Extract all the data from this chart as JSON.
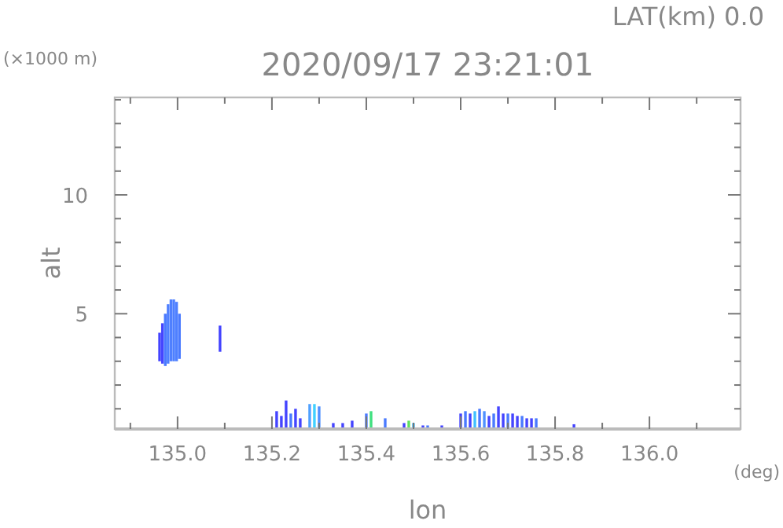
{
  "chart_data": {
    "type": "bar",
    "title": "2020/09/17 23:21:01",
    "subtitle": "LAT(km) 0.0",
    "xlabel": "lon",
    "ylabel": "alt",
    "annotations": [
      "(×1000 m)",
      "(deg)"
    ],
    "x": [
      134.962,
      134.968,
      134.974,
      134.98,
      134.986,
      134.992,
      134.998,
      135.004,
      135.09,
      135.21,
      135.22,
      135.23,
      135.24,
      135.25,
      135.26,
      135.28,
      135.29,
      135.3,
      135.33,
      135.35,
      135.37,
      135.4,
      135.41,
      135.44,
      135.48,
      135.49,
      135.5,
      135.52,
      135.53,
      135.56,
      135.6,
      135.61,
      135.62,
      135.63,
      135.64,
      135.65,
      135.66,
      135.67,
      135.68,
      135.69,
      135.7,
      135.71,
      135.72,
      135.73,
      135.74,
      135.75,
      135.76,
      135.84
    ],
    "base": [
      3.0,
      2.9,
      2.8,
      2.9,
      3.0,
      3.0,
      3.0,
      3.1,
      3.4,
      0.2,
      0.2,
      0.2,
      0.2,
      0.2,
      0.2,
      0.2,
      0.2,
      0.2,
      0.2,
      0.2,
      0.2,
      0.2,
      0.2,
      0.2,
      0.2,
      0.2,
      0.2,
      0.2,
      0.2,
      0.2,
      0.2,
      0.2,
      0.2,
      0.2,
      0.2,
      0.2,
      0.2,
      0.2,
      0.2,
      0.2,
      0.2,
      0.2,
      0.2,
      0.2,
      0.2,
      0.2,
      0.2,
      0.2
    ],
    "values": [
      1.2,
      1.7,
      2.2,
      2.5,
      2.6,
      2.6,
      2.5,
      1.9,
      1.1,
      0.7,
      0.5,
      1.15,
      0.6,
      0.8,
      0.4,
      1.0,
      1.0,
      0.9,
      0.2,
      0.2,
      0.3,
      0.6,
      0.7,
      0.4,
      0.2,
      0.3,
      0.2,
      0.1,
      0.1,
      0.1,
      0.6,
      0.7,
      0.6,
      0.7,
      0.8,
      0.7,
      0.5,
      0.6,
      0.9,
      0.6,
      0.6,
      0.6,
      0.5,
      0.5,
      0.4,
      0.4,
      0.4,
      0.15
    ],
    "colors": [
      "#4444ff",
      "#4444ff",
      "#4a7aff",
      "#4f80ff",
      "#4f80ff",
      "#4f80ff",
      "#4f80ff",
      "#4a7aff",
      "#4444ff",
      "#4444ff",
      "#4444ff",
      "#4444ff",
      "#4a7aff",
      "#4444ff",
      "#4444ff",
      "#4fa0ff",
      "#40d0ff",
      "#4f90ff",
      "#4444ff",
      "#4444ff",
      "#4444ff",
      "#4a7aff",
      "#40e080",
      "#4a7aff",
      "#4444ff",
      "#60e060",
      "#40c0ff",
      "#4444ff",
      "#4a7aff",
      "#4444ff",
      "#4444ff",
      "#4a7aff",
      "#4444ff",
      "#40c0ff",
      "#4a7aff",
      "#4f90ff",
      "#4444ff",
      "#4a7aff",
      "#4444ff",
      "#4444ff",
      "#4a7aff",
      "#4444ff",
      "#4444ff",
      "#4a7aff",
      "#4444ff",
      "#4444ff",
      "#4a7aff",
      "#4444ff"
    ],
    "xlim": [
      134.867,
      136.193
    ],
    "xticks": [
      {
        "value": 134.9,
        "label": null
      },
      {
        "value": 135,
        "label": "135.0"
      },
      {
        "value": 135.1,
        "label": null
      },
      135.2,
      {
        "value": 135.3,
        "label": null
      },
      135.4,
      {
        "value": 135.5,
        "label": null
      },
      135.6,
      {
        "value": 135.7,
        "label": null
      },
      135.8,
      {
        "value": 135.9,
        "label": null
      },
      {
        "value": 136,
        "label": "136.0"
      },
      {
        "value": 136.1,
        "label": null
      }
    ],
    "ylim": [
      0.15,
      14.1
    ],
    "yticks": [
      {
        "value": 1,
        "label": null
      },
      {
        "value": 2,
        "label": null
      },
      {
        "value": 3,
        "label": null
      },
      {
        "value": 4,
        "label": null
      },
      5,
      {
        "value": 6,
        "label": null
      },
      {
        "value": 7,
        "label": null
      },
      {
        "value": 8,
        "label": null
      },
      {
        "value": 9,
        "label": null
      },
      10,
      {
        "value": 11,
        "label": null
      },
      {
        "value": 12,
        "label": null
      },
      {
        "value": 13,
        "label": null
      },
      {
        "value": 14,
        "label": null
      }
    ]
  }
}
